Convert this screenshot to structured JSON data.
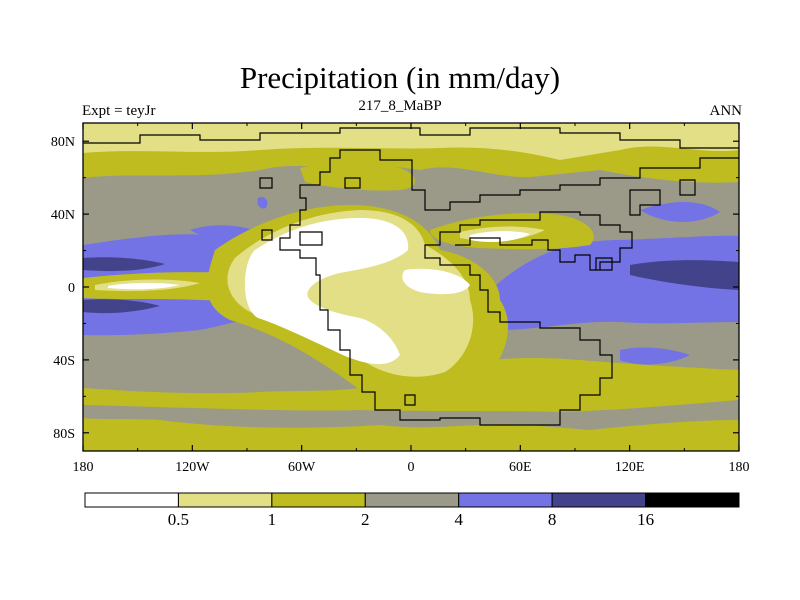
{
  "title": "Precipitation (in mm/day)",
  "subtitle_left": "Expt = teyJr",
  "subtitle_center": "217_8_MaBP",
  "subtitle_right": "ANN",
  "colors": {
    "white": "#ffffff",
    "pale_yellow": "#e3df86",
    "olive": "#bebc1e",
    "gray": "#9b9a88",
    "blue": "#7373e6",
    "dark_blue": "#43438c",
    "black": "#000000"
  },
  "chart_data": {
    "type": "contour-map",
    "projection": "cylindrical-equidistant",
    "variable": "Precipitation",
    "units": "mm/day",
    "lon_range": [
      -180,
      180
    ],
    "lat_range": [
      -90,
      90
    ],
    "x_ticks": [
      {
        "value": -180,
        "label": "180"
      },
      {
        "value": -120,
        "label": "120W"
      },
      {
        "value": -60,
        "label": "60W"
      },
      {
        "value": 0,
        "label": "0"
      },
      {
        "value": 60,
        "label": "60E"
      },
      {
        "value": 120,
        "label": "120E"
      },
      {
        "value": 180,
        "label": "180"
      }
    ],
    "y_ticks": [
      {
        "value": 80,
        "label": "80N"
      },
      {
        "value": 40,
        "label": "40N"
      },
      {
        "value": 0,
        "label": "0"
      },
      {
        "value": -40,
        "label": "40S"
      },
      {
        "value": -80,
        "label": "80S"
      }
    ],
    "levels": [
      0.5,
      1,
      2,
      4,
      8,
      16
    ],
    "level_labels": [
      "0.5",
      "1",
      "2",
      "4",
      "8",
      "16"
    ],
    "colorbar_colors": [
      "#ffffff",
      "#e3df86",
      "#bebc1e",
      "#9b9a88",
      "#7373e6",
      "#43438c",
      "#000000"
    ]
  }
}
